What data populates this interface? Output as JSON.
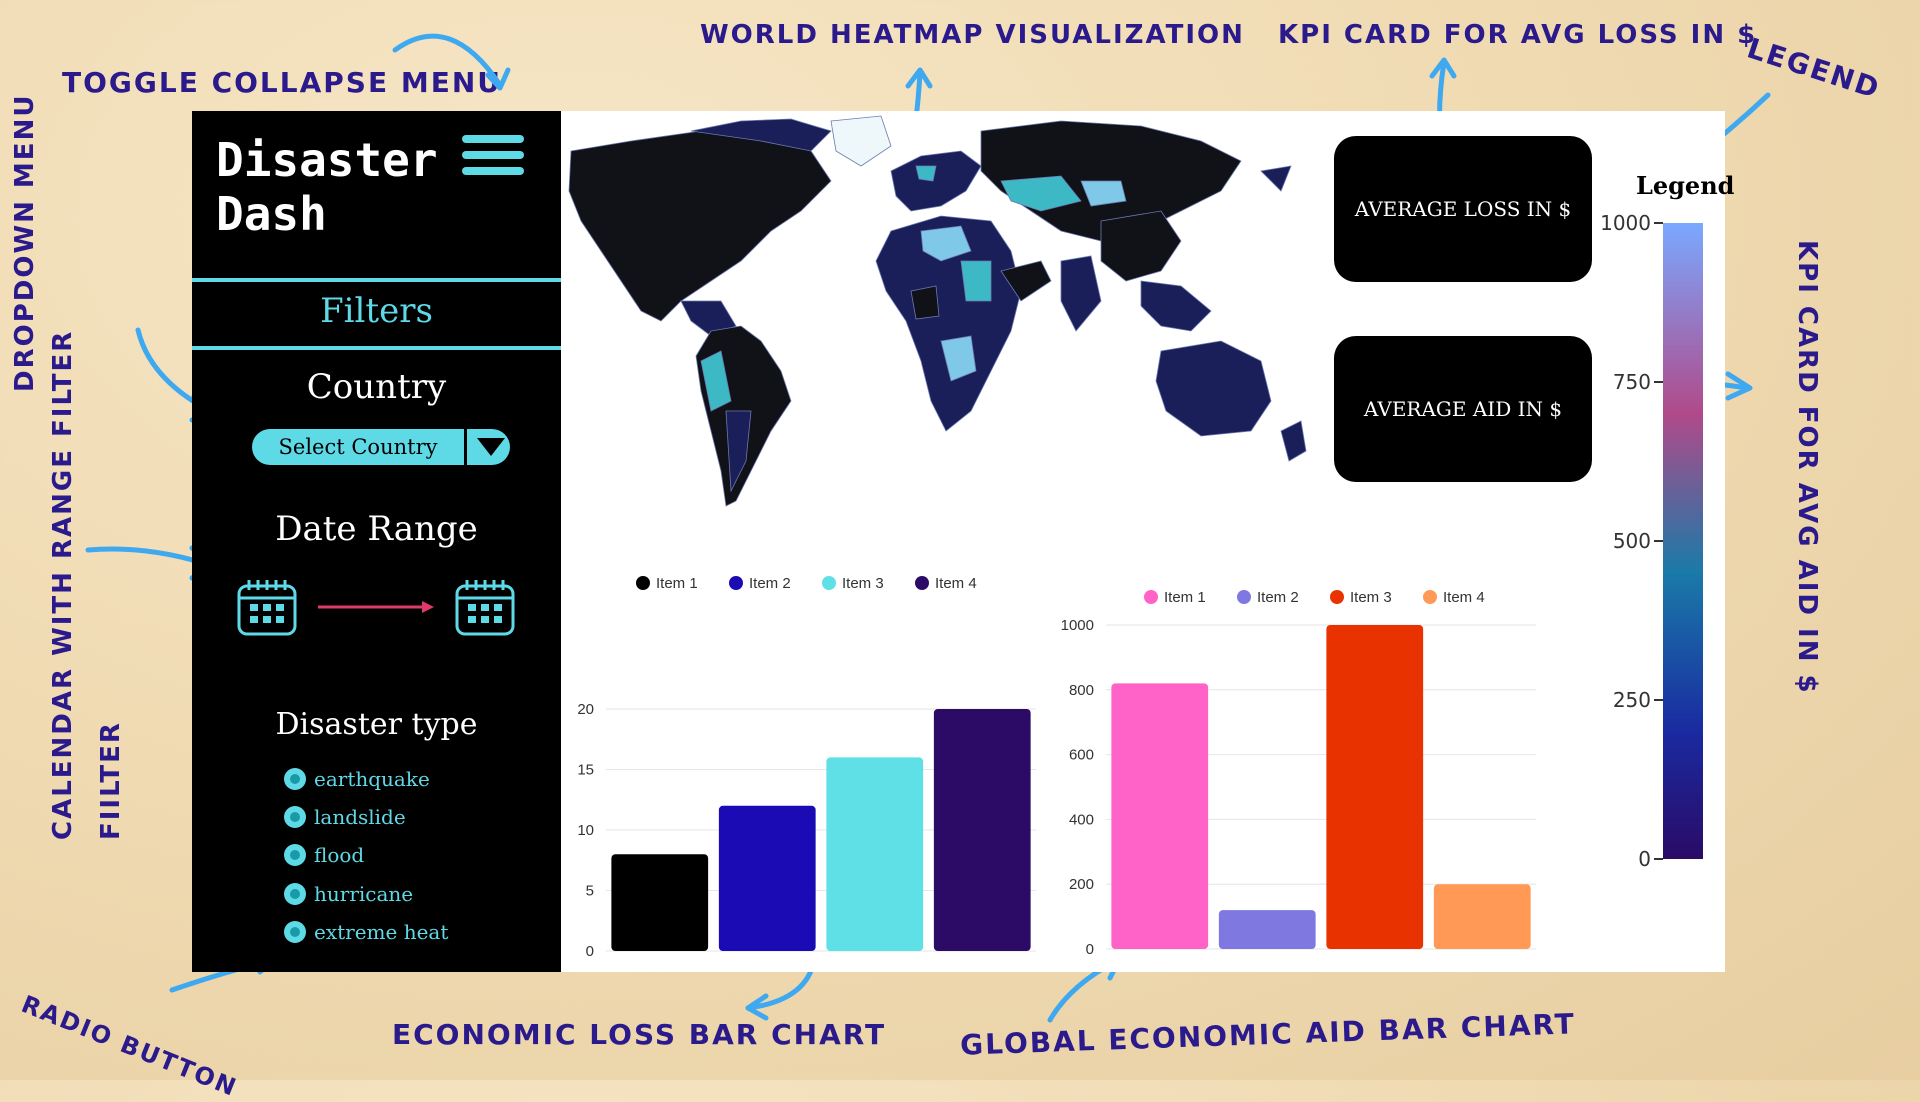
{
  "annotations": {
    "toggle": "Toggle collapse menu",
    "heatmap": "World heatmap visualization",
    "kpi_loss": "KPI card for avg loss in $",
    "legend": "Legend",
    "dropdown": "Dropdown menu",
    "calendar": "Calendar with range filter",
    "kpi_aid": "KPI card for avg aid in $",
    "radio": "Radio button",
    "loss_chart": "Economic loss bar chart",
    "aid_chart": "Global economic aid bar chart"
  },
  "sidebar": {
    "brand": "Disaster\nDash",
    "filters_title": "Filters",
    "country_title": "Country",
    "country_select": "Select Country",
    "date_title": "Date Range",
    "disaster_title": "Disaster type",
    "disaster_types": [
      "earthquake",
      "landslide",
      "flood",
      "hurricane",
      "extreme heat"
    ]
  },
  "kpis": {
    "loss": "AVERAGE LOSS IN $",
    "aid": "AVERAGE AID IN $"
  },
  "legend": {
    "title": "Legend",
    "ticks": [
      "1000",
      "750",
      "500",
      "250",
      "0"
    ]
  },
  "colors": {
    "accent": "#5ed9e6",
    "annotation": "#2a1a8c",
    "arrow": "#3ea8f0"
  },
  "chart_data": [
    {
      "type": "bar",
      "categories": [
        "Item 1",
        "Item 2",
        "Item 3",
        "Item 4"
      ],
      "values": [
        8,
        12,
        16,
        20
      ],
      "colors": [
        "#000000",
        "#1a0bb5",
        "#5ee0e6",
        "#2b0b66"
      ],
      "legend": [
        "Item 1",
        "Item 2",
        "Item 3",
        "Item 4"
      ],
      "legend_position": "top",
      "ylim": [
        0,
        20
      ],
      "yticks": [
        0,
        5,
        10,
        15,
        20
      ],
      "grid": true
    },
    {
      "type": "bar",
      "categories": [
        "Item 1",
        "Item 2",
        "Item 3",
        "Item 4"
      ],
      "values": [
        820,
        120,
        1000,
        200
      ],
      "colors": [
        "#ff63c8",
        "#7e78e0",
        "#e83300",
        "#ff9955"
      ],
      "legend": [
        "Item 1",
        "Item 2",
        "Item 3",
        "Item 4"
      ],
      "legend_position": "top",
      "ylim": [
        0,
        1000
      ],
      "yticks": [
        0,
        200,
        400,
        600,
        800,
        1000
      ],
      "grid": true
    }
  ]
}
